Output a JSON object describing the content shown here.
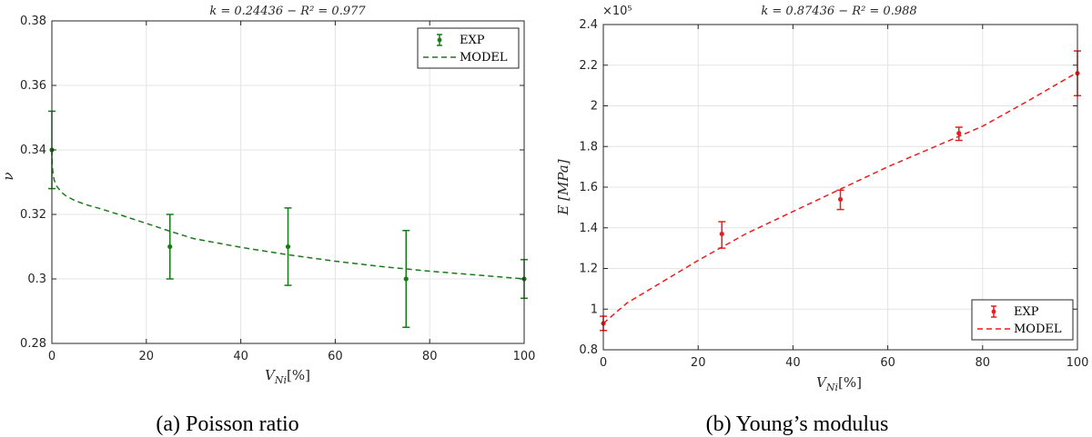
{
  "chart_data": [
    {
      "type": "scatter",
      "title": "k = 0.24436 − R² = 0.977",
      "caption": "(a) Poisson ratio",
      "xlabel_main": "V",
      "xlabel_sub": "Ni",
      "xlabel_unit": "[%]",
      "ylabel": "ν",
      "xlim": [
        0,
        100
      ],
      "ylim": [
        0.28,
        0.38
      ],
      "xticks": [
        0,
        20,
        40,
        60,
        80,
        100
      ],
      "yticks": [
        0.28,
        0.3,
        0.32,
        0.34,
        0.36,
        0.38
      ],
      "xtick_labels": [
        "0",
        "20",
        "40",
        "60",
        "80",
        "100"
      ],
      "ytick_labels": [
        "0.28",
        "0.3",
        "0.32",
        "0.34",
        "0.36",
        "0.38"
      ],
      "grid": true,
      "legend_position": "top-right",
      "color": "#1a7a1a",
      "series": [
        {
          "name": "EXP",
          "kind": "errorbar",
          "x": [
            0,
            25,
            50,
            75,
            100
          ],
          "y": [
            0.34,
            0.31,
            0.31,
            0.3,
            0.3
          ],
          "err_low": [
            0.328,
            0.3,
            0.298,
            0.285,
            0.294
          ],
          "err_high": [
            0.352,
            0.32,
            0.322,
            0.315,
            0.306
          ]
        },
        {
          "name": "MODEL",
          "kind": "line",
          "x": [
            0,
            0.1,
            0.25,
            0.5,
            1,
            2,
            3,
            5,
            7.5,
            10,
            15,
            20,
            25,
            30,
            40,
            50,
            60,
            70,
            80,
            90,
            100
          ],
          "y": [
            0.34,
            0.3348,
            0.3325,
            0.3306,
            0.3288,
            0.3269,
            0.3257,
            0.3242,
            0.3229,
            0.3219,
            0.3196,
            0.3172,
            0.3148,
            0.3125,
            0.3098,
            0.3075,
            0.3055,
            0.3038,
            0.3024,
            0.3012,
            0.3
          ]
        }
      ]
    },
    {
      "type": "scatter",
      "title": "k = 0.87436 − R² = 0.988",
      "caption": "(b) Young’s modulus",
      "xlabel_main": "V",
      "xlabel_sub": "Ni",
      "xlabel_unit": "[%]",
      "ylabel": "E [MPa]",
      "y_multiplier": "×10⁵",
      "xlim": [
        0,
        100
      ],
      "ylim": [
        0.8,
        2.4
      ],
      "xticks": [
        0,
        20,
        40,
        60,
        80,
        100
      ],
      "yticks": [
        0.8,
        1,
        1.2,
        1.4,
        1.6,
        1.8,
        2,
        2.2,
        2.4
      ],
      "xtick_labels": [
        "0",
        "20",
        "40",
        "60",
        "80",
        "100"
      ],
      "ytick_labels": [
        "0.8",
        "1",
        "1.2",
        "1.4",
        "1.6",
        "1.8",
        "2",
        "2.2",
        "2.4"
      ],
      "grid": true,
      "legend_position": "bottom-right",
      "color": "#ee1c1c",
      "series": [
        {
          "name": "EXP",
          "kind": "errorbar",
          "x": [
            0,
            25,
            50,
            75,
            100
          ],
          "y": [
            0.93,
            1.37,
            1.54,
            1.865,
            2.16
          ],
          "err_low": [
            0.895,
            1.3,
            1.49,
            1.83,
            2.05
          ],
          "err_high": [
            0.965,
            1.43,
            1.585,
            1.895,
            2.27
          ]
        },
        {
          "name": "MODEL",
          "kind": "line",
          "x": [
            0,
            5,
            10,
            20,
            30,
            40,
            50,
            60,
            70,
            80,
            90,
            100
          ],
          "y": [
            0.93,
            1.03,
            1.1,
            1.24,
            1.37,
            1.48,
            1.59,
            1.7,
            1.8,
            1.9,
            2.03,
            2.165
          ]
        }
      ]
    }
  ]
}
